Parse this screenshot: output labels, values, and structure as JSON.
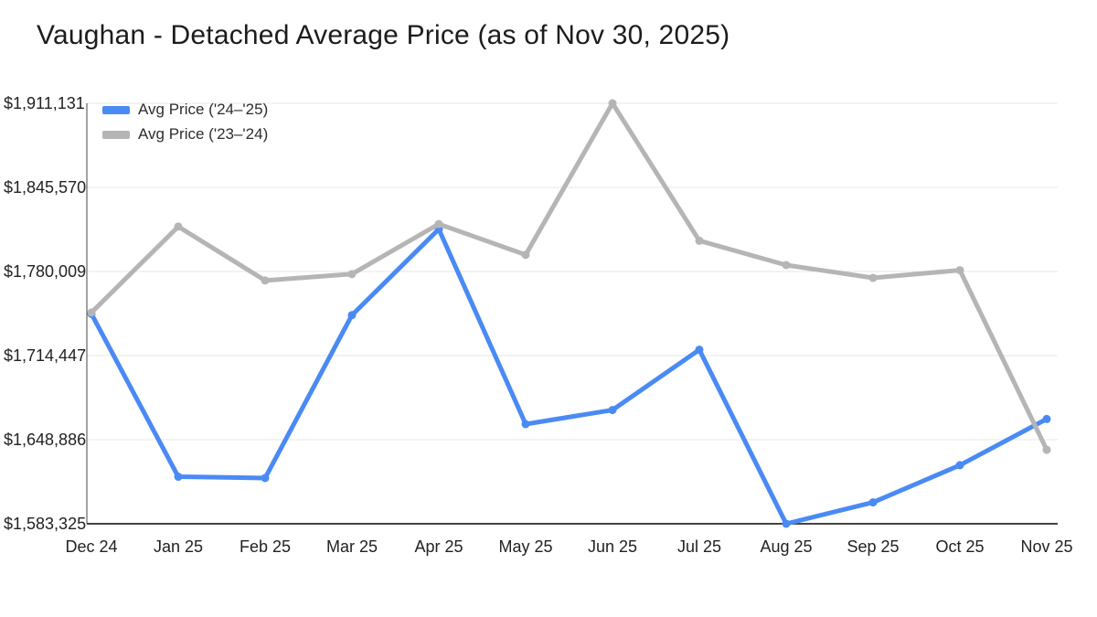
{
  "title": "Vaughan - Detached Average Price (as of Nov 30, 2025)",
  "colors": {
    "blue": "#4a8af4",
    "gray": "#b5b5b5",
    "grid": "#e7e7e7",
    "axis": "#444444",
    "text": "#222222"
  },
  "chart_data": {
    "type": "line",
    "title": "Vaughan - Detached Average Price (as of Nov 30, 2025)",
    "categories": [
      "Dec 24",
      "Jan 25",
      "Feb 25",
      "Mar 25",
      "Apr 25",
      "May 25",
      "Jun 25",
      "Jul 25",
      "Aug 25",
      "Sep 25",
      "Oct 25",
      "Nov 25"
    ],
    "series": [
      {
        "name": "Avg Price ('24–'25)",
        "color": "#4a8af4",
        "values": [
          1747000,
          1620000,
          1619000,
          1746000,
          1813000,
          1661000,
          1672000,
          1719000,
          1583325,
          1600000,
          1629000,
          1665000
        ]
      },
      {
        "name": "Avg Price ('23–'24)",
        "color": "#b5b5b5",
        "values": [
          1748000,
          1815000,
          1773000,
          1778000,
          1817000,
          1793000,
          1911131,
          1804000,
          1785000,
          1775000,
          1781000,
          1641000
        ]
      }
    ],
    "y_ticks": [
      1583325,
      1648886,
      1714447,
      1780009,
      1845570,
      1911131
    ],
    "y_tick_labels": [
      "$1,583,325",
      "$1,648,886",
      "$1,714,447",
      "$1,780,009",
      "$1,845,570",
      "$1,911,131"
    ],
    "ylim": [
      1583325,
      1911131
    ],
    "xlabel": "",
    "ylabel": "",
    "grid": true,
    "legend_position": "top-left"
  }
}
